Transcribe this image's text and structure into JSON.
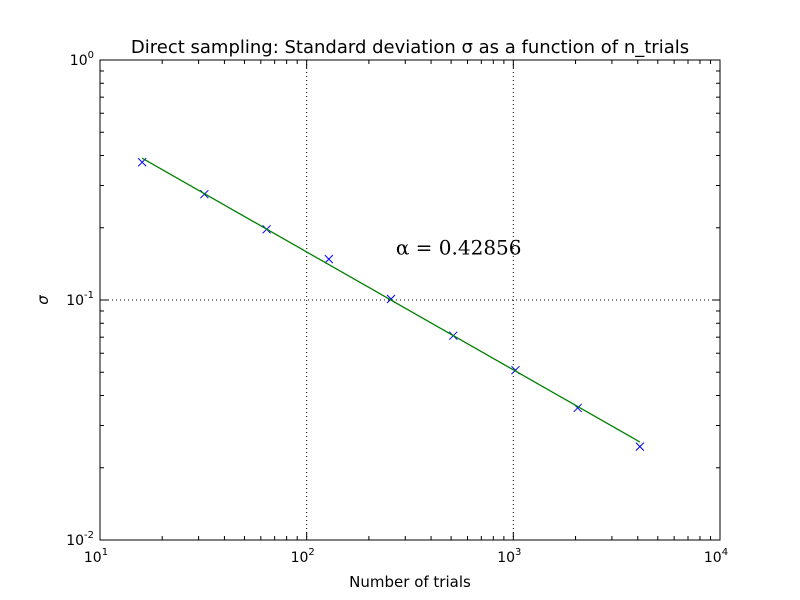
{
  "chart_data": {
    "type": "scatter",
    "title": "Direct sampling: Standard deviation σ as a function of n_trials",
    "xlabel": "Number of trials",
    "ylabel": "σ",
    "xscale": "log",
    "yscale": "log",
    "xlim": [
      10,
      10000
    ],
    "ylim": [
      0.01,
      1
    ],
    "grid": true,
    "x_ticks": [
      {
        "base": "10",
        "exp": "1",
        "value": 10
      },
      {
        "base": "10",
        "exp": "2",
        "value": 100
      },
      {
        "base": "10",
        "exp": "3",
        "value": 1000
      },
      {
        "base": "10",
        "exp": "4",
        "value": 10000
      }
    ],
    "y_ticks": [
      {
        "base": "10",
        "exp": "-2",
        "value": 0.01
      },
      {
        "base": "10",
        "exp": "-1",
        "value": 0.1
      },
      {
        "base": "10",
        "exp": "0",
        "value": 1
      }
    ],
    "series": [
      {
        "marker": "x",
        "color": "#0000ff",
        "x": [
          16,
          32,
          64,
          128,
          256,
          512,
          1024,
          2048,
          4096
        ],
        "y": [
          0.375,
          0.276,
          0.197,
          0.148,
          0.101,
          0.071,
          0.051,
          0.0355,
          0.0245
        ]
      },
      {
        "style": "line",
        "color": "#008000",
        "x": [
          16,
          4096
        ],
        "y": [
          0.39,
          0.0256
        ]
      }
    ],
    "annotations": [
      {
        "text": "α = 0.42856",
        "x": 270,
        "y": 0.155
      }
    ]
  }
}
